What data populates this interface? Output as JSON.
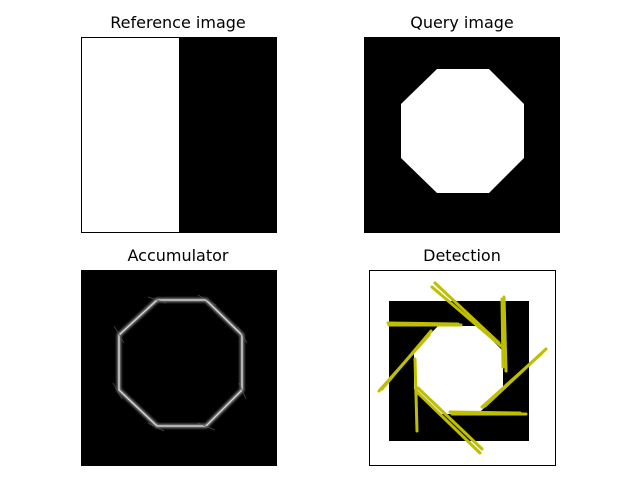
{
  "panels": {
    "reference": {
      "title": "Reference image"
    },
    "query": {
      "title": "Query image"
    },
    "accumulator": {
      "title": "Accumulator"
    },
    "detection": {
      "title": "Detection"
    }
  },
  "colors": {
    "background": "#ffffff",
    "image_black": "#000000",
    "image_white": "#ffffff",
    "detection_line": "#bfbf00",
    "accumulator_ring": "#bdbdbd"
  }
}
